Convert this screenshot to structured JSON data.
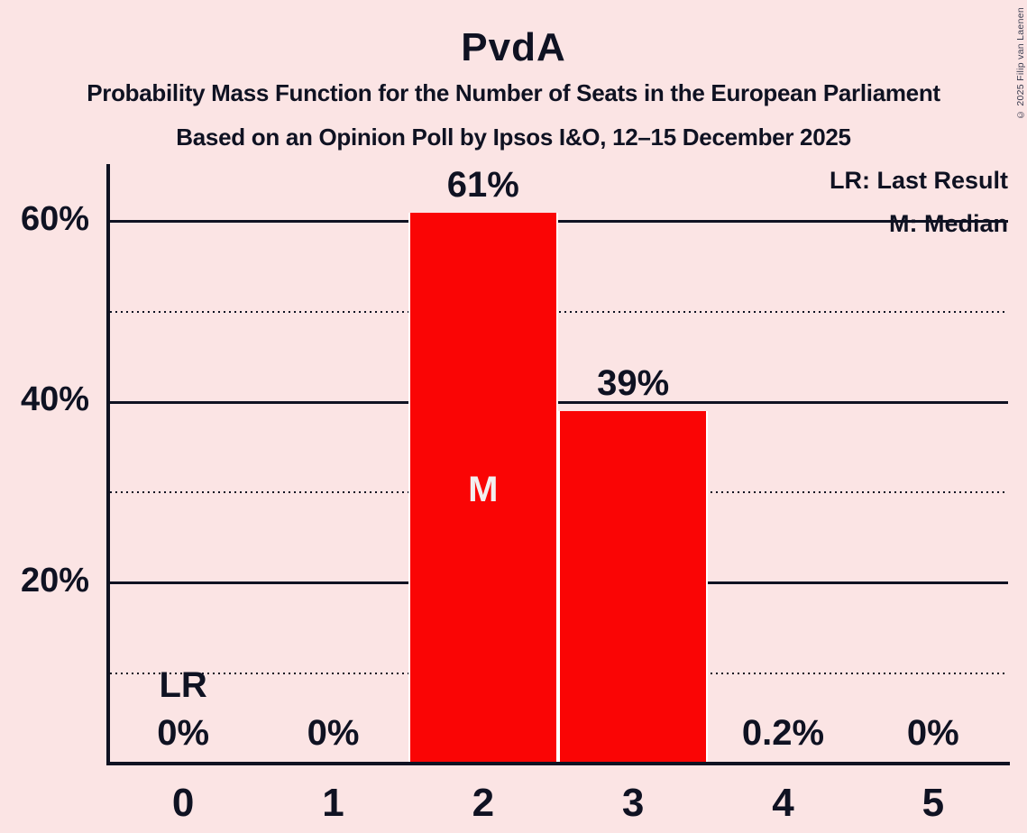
{
  "header": {
    "title": "PvdA",
    "subtitle1": "Probability Mass Function for the Number of Seats in the European Parliament",
    "subtitle2": "Based on an Opinion Poll by Ipsos I&O, 12–15 December 2025"
  },
  "legend": {
    "lr": "LR: Last Result",
    "m": "M: Median",
    "position": "top-right"
  },
  "copyright": "© 2025 Filip van Laenen",
  "colors": {
    "background": "#FBE4E4",
    "bar": "#FA0505",
    "ink": "#0F1222",
    "bar_divider": "#FFFFFF",
    "inside_bar_label": "#F2EFEF"
  },
  "chart_data": {
    "type": "bar",
    "title": "PvdA",
    "categories": [
      "0",
      "1",
      "2",
      "3",
      "4",
      "5"
    ],
    "values": [
      0,
      0,
      61,
      39,
      0.2,
      0
    ],
    "value_labels": [
      "0%",
      "0%",
      "61%",
      "39%",
      "0.2%",
      "0%"
    ],
    "xlabel": "",
    "ylabel": "",
    "ylim": [
      0,
      66
    ],
    "yticks": [
      {
        "value": 20,
        "label": "20%"
      },
      {
        "value": 40,
        "label": "40%"
      },
      {
        "value": 60,
        "label": "60%"
      }
    ],
    "major_gridlines": [
      20,
      40,
      60
    ],
    "minor_gridlines": [
      10,
      30,
      50
    ],
    "grid": "horizontal",
    "legend_position": "top-right",
    "annotations": [
      {
        "category": "0",
        "label": "LR",
        "meaning": "Last Result",
        "position": "above-value-label"
      },
      {
        "category": "2",
        "label": "M",
        "meaning": "Median",
        "position": "inside-bar"
      }
    ]
  }
}
